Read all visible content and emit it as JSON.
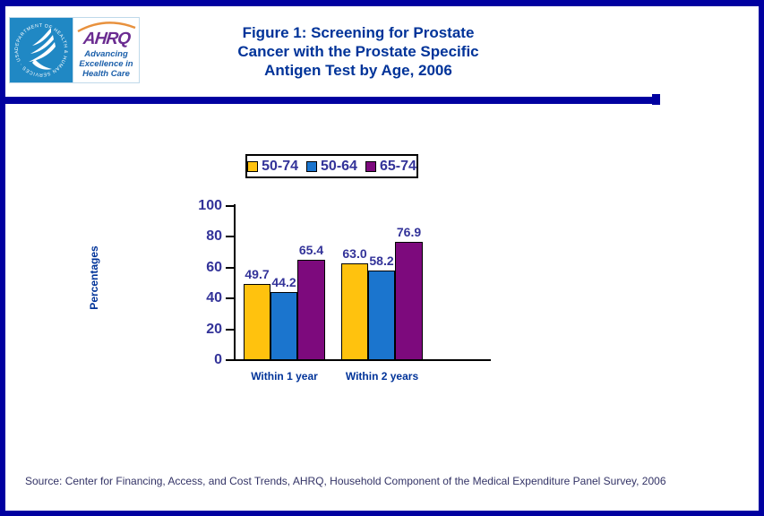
{
  "header": {
    "logo": {
      "hhs_seal_text": "DEPARTMENT OF HEALTH & HUMAN SERVICES · USA",
      "ahrq_acronym": "AHRQ",
      "ahrq_tagline": "Advancing\nExcellence in\nHealth Care"
    },
    "title": "Figure 1: Screening for Prostate\nCancer with the Prostate Specific\nAntigen Test by Age, 2006"
  },
  "chart_data": {
    "type": "bar",
    "title": "Figure 1: Screening for Prostate Cancer with the Prostate Specific Antigen Test by Age, 2006",
    "categories": [
      "Within 1 year",
      "Within 2 years"
    ],
    "series": [
      {
        "name": "50-74",
        "color": "#FFC20E",
        "values": [
          49.7,
          63.0
        ]
      },
      {
        "name": "50-64",
        "color": "#1B75CE",
        "values": [
          44.2,
          58.2
        ]
      },
      {
        "name": "65-74",
        "color": "#7D0A7D",
        "values": [
          65.4,
          76.9
        ]
      }
    ],
    "xlabel": "",
    "ylabel": "Percentages",
    "ylim": [
      0,
      100
    ],
    "yticks": [
      0,
      20,
      40,
      60,
      80,
      100
    ],
    "grid": false,
    "legend_position": "top",
    "value_labels": true
  },
  "colors": {
    "page_border": "#0000A0",
    "title_text": "#003399",
    "tick_text": "#333399",
    "value_label_text": "#333399",
    "source_text": "#333366",
    "hhs_seal_blue": "#2088C4",
    "ahrq_purple": "#6B2C91",
    "ahrq_tagline_blue": "#1B5FAA",
    "arc_orange": "#E8913D"
  },
  "footer": {
    "source": "Source: Center for Financing, Access, and Cost Trends, AHRQ, Household Component of the Medical Expenditure Panel Survey, 2006"
  }
}
